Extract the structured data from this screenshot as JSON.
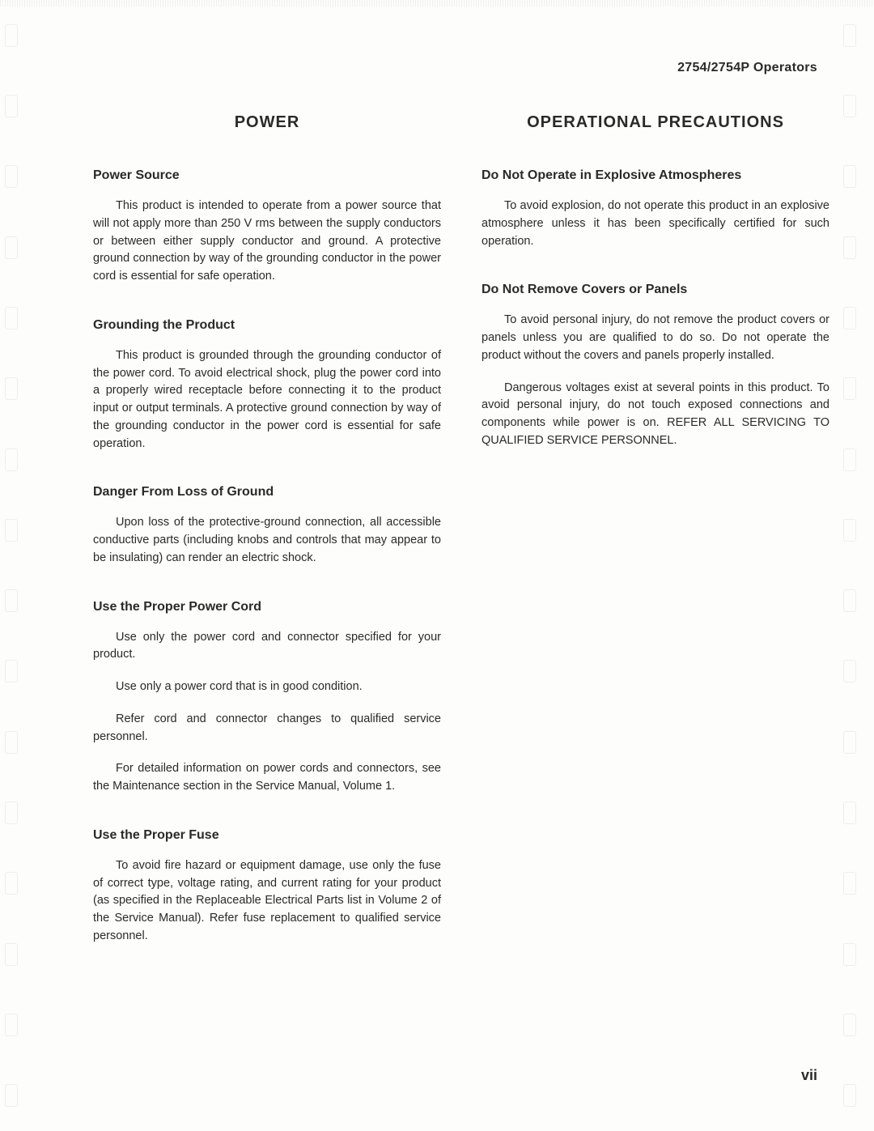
{
  "header": "2754/2754P Operators",
  "page_number": "vii",
  "left": {
    "title": "POWER",
    "sections": [
      {
        "heading": "Power Source",
        "paragraphs": [
          "This product is intended to operate from a power source that will not apply more than 250 V rms between the supply conductors or between either supply conductor and ground. A protective ground connection by way of the grounding conductor in the power cord is essential for safe operation."
        ]
      },
      {
        "heading": "Grounding the Product",
        "paragraphs": [
          "This product is grounded through the grounding conductor of the power cord. To avoid electrical shock, plug the power cord into a properly wired receptacle before connecting it to the product input or output terminals. A protective ground connection by way of the grounding conductor in the power cord is essential for safe operation."
        ]
      },
      {
        "heading": "Danger From Loss of Ground",
        "paragraphs": [
          "Upon loss of the protective-ground connection, all accessible conductive parts (including knobs and controls that may appear to be insulating) can render an electric shock."
        ]
      },
      {
        "heading": "Use the Proper Power Cord",
        "paragraphs": [
          "Use only the power cord and connector specified for your product.",
          "Use only a power cord that is in good condition.",
          "Refer cord and connector changes to qualified service personnel.",
          "For detailed information on power cords and connectors, see the Maintenance section in the Service Manual, Volume 1."
        ]
      },
      {
        "heading": "Use the Proper Fuse",
        "paragraphs": [
          "To avoid fire hazard or equipment damage, use only the fuse of correct type, voltage rating, and current rating for your product (as specified in the Replaceable Electrical Parts list in Volume 2 of the Service Manual). Refer fuse replacement to qualified service personnel."
        ]
      }
    ]
  },
  "right": {
    "title": "OPERATIONAL PRECAUTIONS",
    "sections": [
      {
        "heading": "Do Not Operate in Explosive Atmospheres",
        "paragraphs": [
          "To avoid explosion, do not operate this product in an explosive atmosphere unless it has been specifically certified for such operation."
        ]
      },
      {
        "heading": "Do Not Remove Covers or Panels",
        "paragraphs": [
          "To avoid personal injury, do not remove the product covers or panels unless you are qualified to do so. Do not operate the product without the covers and panels properly installed.",
          "Dangerous voltages exist at several points in this product. To avoid personal injury, do not touch exposed connections and components while power is on. REFER ALL SERVICING TO QUALIFIED SERVICE PERSONNEL."
        ]
      }
    ]
  }
}
